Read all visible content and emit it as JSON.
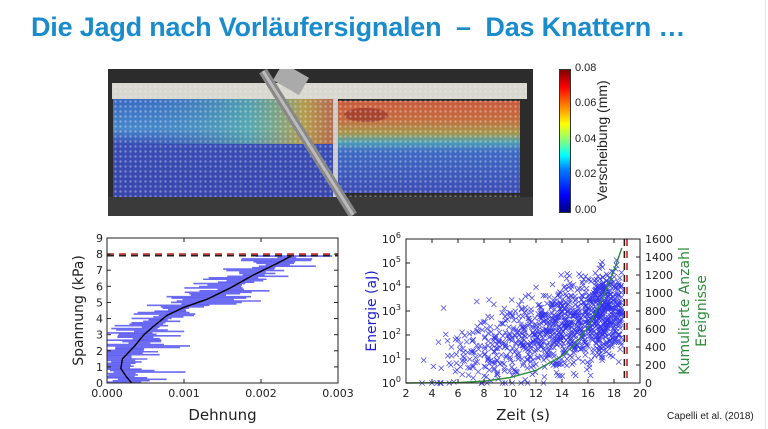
{
  "slide": {
    "title": "Die Jagd nach Vorläufersignalen  –  Das Knattern …",
    "source": "Capelli et al. (2018)",
    "title_color": "#1a8ccc"
  },
  "photo": {
    "description": "Granular shear box with DIC displacement overlay",
    "colorbar": {
      "label": "Verscheibung (mm)",
      "ticks": [
        "0.08",
        "0.06",
        "0.04",
        "0.02",
        "0.00"
      ],
      "min": 0.0,
      "max": 0.08,
      "colormap": "jet"
    }
  },
  "chart_data": [
    {
      "type": "line",
      "title": "",
      "xlabel": "Dehnung",
      "ylabel": "Spannung (kPa)",
      "xlim": [
        0.0,
        0.003
      ],
      "ylim": [
        0,
        9
      ],
      "xticks": [
        "0.000",
        "0.001",
        "0.002",
        "0.003"
      ],
      "yticks": [
        "0",
        "1",
        "2",
        "3",
        "4",
        "5",
        "6",
        "7",
        "8",
        "9"
      ],
      "grid": false,
      "series": [
        {
          "name": "mean strain",
          "color": "#000000",
          "x": [
            0.00032,
            0.00025,
            0.00018,
            0.0002,
            0.00028,
            0.00036,
            0.00048,
            0.0006,
            0.00078,
            0.001,
            0.0013,
            0.0016,
            0.0019,
            0.0022,
            0.0024
          ],
          "y": [
            0,
            0.4,
            0.9,
            1.5,
            1.9,
            2.3,
            3.0,
            3.5,
            4.2,
            4.7,
            5.2,
            5.9,
            6.7,
            7.4,
            7.9
          ]
        },
        {
          "name": "local strain fluctuations",
          "color": "#3b3bf0",
          "style": "horizontal bars",
          "note": "spread of strain values at each stress level, max approx 0.0029"
        }
      ],
      "hlines": [
        {
          "y": 8.0,
          "color": "#cc2222",
          "style": "dashed"
        },
        {
          "y": 7.9,
          "color": "#222222",
          "style": "dashed"
        }
      ]
    },
    {
      "type": "scatter",
      "title": "",
      "xlabel": "Zeit (s)",
      "ylabel": "Energie (aJ)",
      "ylabel2": "Kumulierte Anzahl Ereignisse",
      "xlim": [
        2,
        20
      ],
      "ylim": [
        1,
        1000000
      ],
      "yscale": "log",
      "ylim2": [
        0,
        1600
      ],
      "xticks": [
        "2",
        "4",
        "6",
        "8",
        "10",
        "12",
        "14",
        "16",
        "18",
        "20"
      ],
      "yticks": [
        "10^0",
        "10^1",
        "10^2",
        "10^3",
        "10^4",
        "10^5",
        "10^6"
      ],
      "yticks2": [
        "0",
        "200",
        "400",
        "600",
        "800",
        "1000",
        "1200",
        "1400",
        "1600"
      ],
      "grid": false,
      "series": [
        {
          "name": "AE events",
          "marker": "x",
          "color": "#3333ee",
          "approx_count": 1500,
          "note": "event density increases strongly after t≈12 s, energies 1–10^6 aJ"
        },
        {
          "name": "cumulative events",
          "axis": "right",
          "color": "#2e8b3a",
          "x": [
            2,
            6,
            8,
            10,
            12,
            14,
            15,
            16,
            17,
            18,
            18.6
          ],
          "y": [
            0,
            5,
            20,
            60,
            140,
            300,
            430,
            620,
            900,
            1250,
            1500
          ]
        }
      ],
      "vlines": [
        {
          "x": 18.8,
          "color": "#222222",
          "style": "dashed"
        },
        {
          "x": 19.0,
          "color": "#cc2222",
          "style": "dashed"
        }
      ],
      "colors": {
        "left_axis_label": "#2222cc",
        "right_axis_label": "#2e8b3a"
      }
    }
  ]
}
